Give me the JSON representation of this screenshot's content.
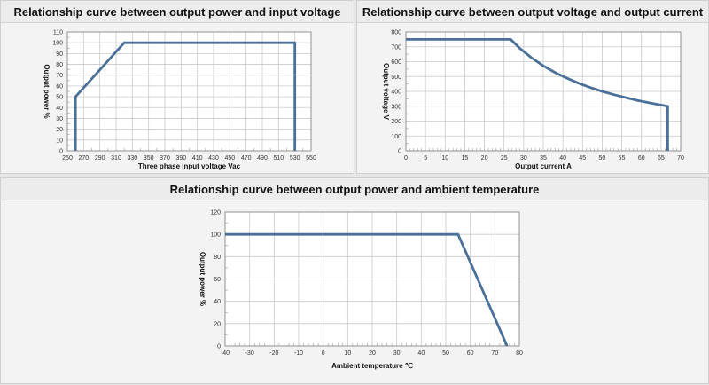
{
  "chart_data": [
    {
      "type": "line",
      "title": "Relationship curve between output power and input voltage",
      "xlabel": "Three phase input voltage Vac",
      "ylabel": "Output power %",
      "xlim": [
        250,
        550
      ],
      "ylim": [
        0,
        110
      ],
      "xticks": [
        250,
        270,
        290,
        310,
        330,
        350,
        370,
        390,
        410,
        430,
        450,
        470,
        490,
        510,
        530,
        550
      ],
      "yticks": [
        0,
        10,
        20,
        30,
        40,
        50,
        60,
        70,
        80,
        90,
        100,
        110
      ],
      "minor_x": 10,
      "minor_y": 5,
      "series": [
        {
          "name": "Output power",
          "x": [
            260,
            260,
            320,
            530,
            530
          ],
          "y": [
            0,
            50,
            100,
            100,
            0
          ]
        }
      ],
      "line_color": "#4a6f99"
    },
    {
      "type": "line",
      "title": "Relationship curve between output voltage and output current",
      "xlabel": "Output current A",
      "ylabel": "Output voltage V",
      "xlim": [
        0,
        70
      ],
      "ylim": [
        0,
        800
      ],
      "xticks": [
        0,
        5,
        10,
        15,
        20,
        25,
        30,
        35,
        40,
        45,
        50,
        55,
        60,
        65,
        70
      ],
      "yticks": [
        0,
        100,
        200,
        300,
        400,
        500,
        600,
        700,
        800
      ],
      "minor_x": 1,
      "minor_y": 50,
      "series": [
        {
          "name": "Output voltage",
          "x": [
            0,
            26.7,
            29,
            32,
            35,
            38,
            41,
            44,
            47,
            50,
            53,
            56,
            59,
            62,
            65,
            66.7,
            66.7
          ],
          "y": [
            750,
            750,
            690,
            626,
            572,
            527,
            489,
            455,
            426,
            400,
            378,
            358,
            339,
            323,
            308,
            300,
            0
          ]
        }
      ],
      "line_color": "#4a6f99"
    },
    {
      "type": "line",
      "title": "Relationship curve between output power and ambient temperature",
      "xlabel": "Ambient temperature ℃",
      "ylabel": "Output power %",
      "xlim": [
        -40,
        80
      ],
      "ylim": [
        0,
        120
      ],
      "xticks": [
        -40,
        -30,
        -20,
        -10,
        0,
        10,
        20,
        30,
        40,
        50,
        60,
        70,
        80
      ],
      "yticks": [
        0,
        20,
        40,
        60,
        80,
        100,
        120
      ],
      "minor_x": 2,
      "minor_y": 10,
      "series": [
        {
          "name": "Output power",
          "x": [
            -40,
            55,
            75
          ],
          "y": [
            100,
            100,
            0
          ]
        }
      ],
      "line_color": "#4a6f99"
    }
  ]
}
